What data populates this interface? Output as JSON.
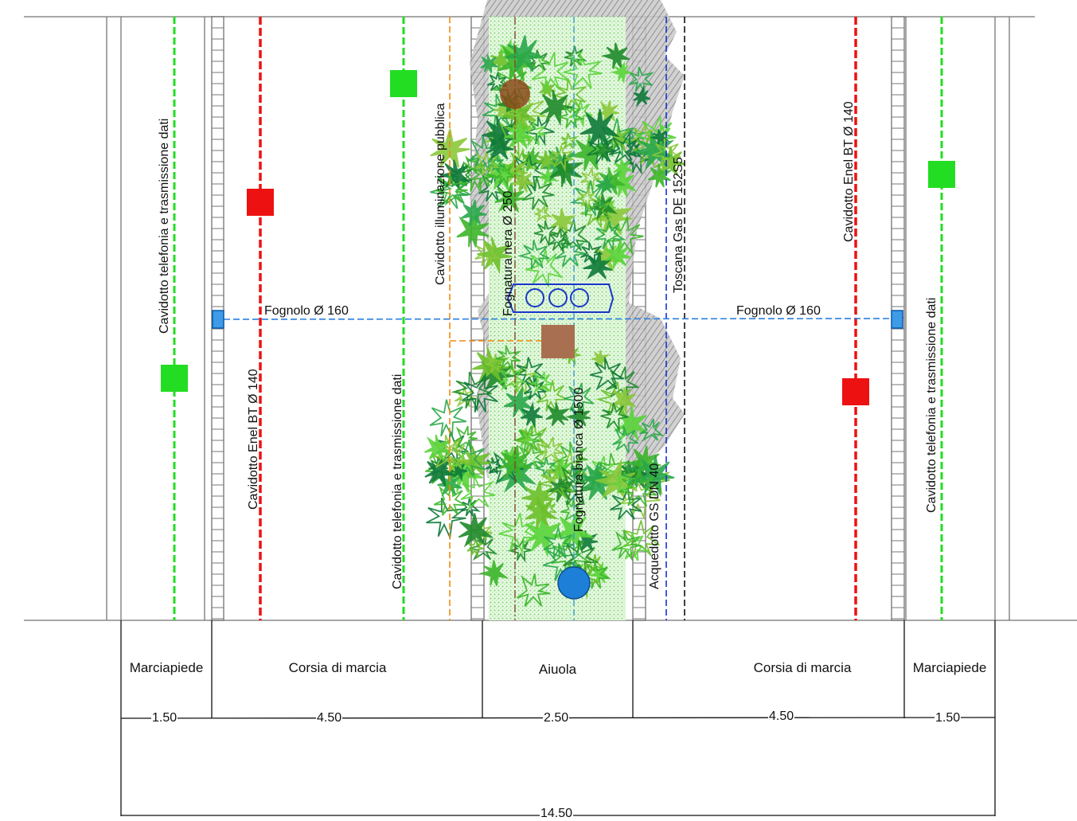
{
  "labels": {
    "tel_left": "Cavidotto telefonia e trasmissione dati",
    "enel_left": "Cavidotto Enel BT Ø 140",
    "tel_center": "Cavidotto telefonia e trasmissione dati",
    "illum": "Cavidotto illuminazione pubblica",
    "fognatura_nera": "Fognatura nera Ø 250",
    "fognatura_bianca": "Fognatura bianca Ø 1500",
    "acquedotto": "Acquedotto GS DN 40",
    "gas": "Toscana Gas DE 152S5",
    "enel_right": "Cavidotto Enel BT Ø 140",
    "tel_right": "Cavidotto telefonia e trasmissione dati",
    "fognolo_left": "Fognolo Ø 160",
    "fognolo_right": "Fognolo Ø 160"
  },
  "segments": [
    {
      "label": "Marciapiede",
      "width": "1.50"
    },
    {
      "label": "Corsia di marcia",
      "width": "4.50"
    },
    {
      "label": "Aiuola",
      "width": "2.50"
    },
    {
      "label": "Corsia di marcia",
      "width": "4.50"
    },
    {
      "label": "Marciapiede",
      "width": "1.50"
    }
  ],
  "total_width": "14.50",
  "colors": {
    "telecom": "#22dd22",
    "enel": "#ee1111",
    "illuminazione": "#f08a10",
    "fognolo": "#2a7fe0",
    "acquedotto": "#1a2fd0",
    "gas": "#111111",
    "fognatura": "#7a4a2a",
    "manhole": "#a87050",
    "tree_fill": "#4fd430",
    "hatch": "#9a9a9a"
  }
}
